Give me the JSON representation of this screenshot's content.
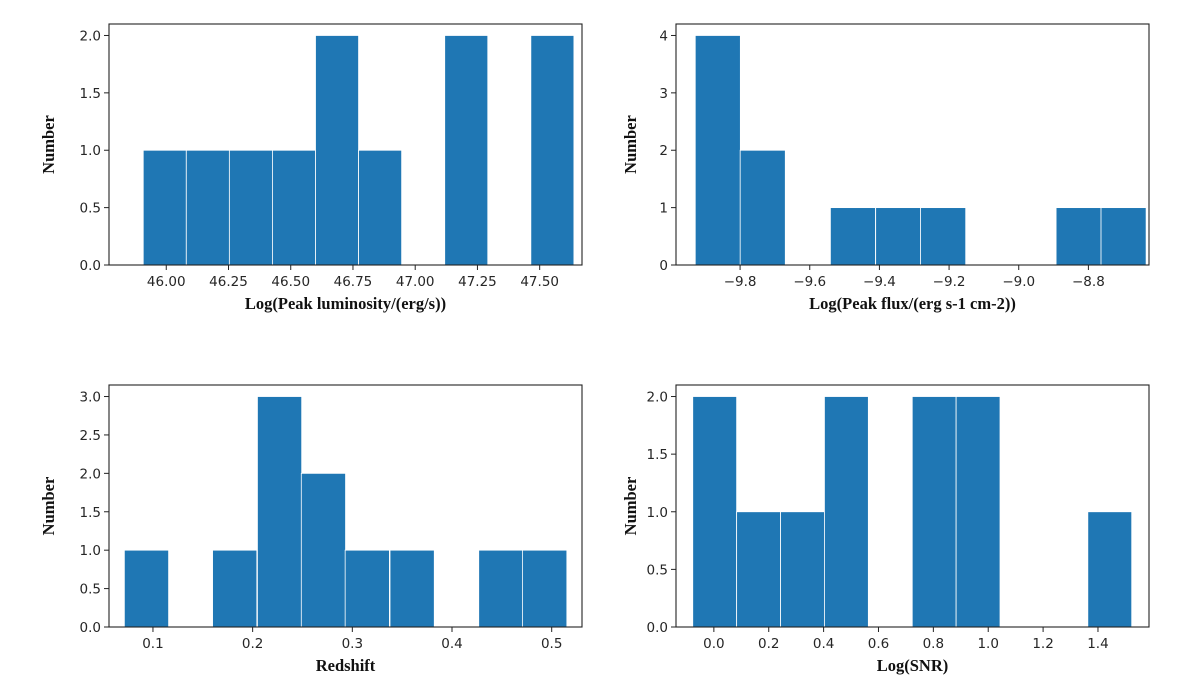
{
  "figure": {
    "bar_color": "#1f77b4"
  },
  "chart_data": [
    {
      "id": "luminosity",
      "type": "bar",
      "title": "",
      "xlabel": "Log(Peak luminosity/(erg/s))",
      "ylabel": "Number",
      "x": [
        45.994,
        46.167,
        46.34,
        46.513,
        46.686,
        46.859,
        47.032,
        47.205,
        47.378,
        47.551
      ],
      "values": [
        1,
        1,
        1,
        1,
        2,
        1,
        0,
        2,
        0,
        2
      ],
      "bin_width": 0.173,
      "xlim": [
        45.77,
        47.67
      ],
      "ylim": [
        0,
        2.1
      ],
      "xticks": [
        46.0,
        46.25,
        46.5,
        46.75,
        47.0,
        47.25,
        47.5
      ],
      "xtick_labels": [
        "46.00",
        "46.25",
        "46.50",
        "46.75",
        "47.00",
        "47.25",
        "47.50"
      ],
      "yticks": [
        0,
        0.5,
        1.0,
        1.5,
        2.0
      ],
      "ytick_labels": [
        "0.0",
        "0.5",
        "1.0",
        "1.5",
        "2.0"
      ],
      "grid": false
    },
    {
      "id": "flux",
      "type": "bar",
      "title": "",
      "xlabel": "Log(Peak flux/(erg s-1 cm-2))",
      "ylabel": "Number",
      "x": [
        -9.864,
        -9.735,
        -9.605,
        -9.476,
        -9.346,
        -9.217,
        -9.087,
        -8.958,
        -8.828,
        -8.699
      ],
      "values": [
        4,
        2,
        0,
        1,
        1,
        1,
        0,
        0,
        1,
        1
      ],
      "bin_width": 0.1295,
      "xlim": [
        -9.984,
        -8.626
      ],
      "ylim": [
        0,
        4.2
      ],
      "xticks": [
        -9.8,
        -9.6,
        -9.4,
        -9.2,
        -9.0,
        -8.8
      ],
      "xtick_labels": [
        "−9.8",
        "−9.6",
        "−9.4",
        "−9.2",
        "−9.0",
        "−8.8"
      ],
      "yticks": [
        0,
        1,
        2,
        3,
        4
      ],
      "ytick_labels": [
        "0",
        "1",
        "2",
        "3",
        "4"
      ],
      "grid": false
    },
    {
      "id": "redshift",
      "type": "bar",
      "title": "",
      "xlabel": "Redshift",
      "ylabel": "Number",
      "x": [
        0.0935,
        0.138,
        0.182,
        0.227,
        0.271,
        0.315,
        0.36,
        0.404,
        0.449,
        0.493
      ],
      "values": [
        1,
        0,
        1,
        3,
        2,
        1,
        1,
        0,
        1,
        1
      ],
      "bin_width": 0.0444,
      "xlim": [
        0.0559,
        0.5304
      ],
      "ylim": [
        0,
        3.15
      ],
      "xticks": [
        0.1,
        0.2,
        0.3,
        0.4,
        0.5
      ],
      "xtick_labels": [
        "0.1",
        "0.2",
        "0.3",
        "0.4",
        "0.5"
      ],
      "yticks": [
        0,
        0.5,
        1.0,
        1.5,
        2.0,
        2.5,
        3.0
      ],
      "ytick_labels": [
        "0.0",
        "0.5",
        "1.0",
        "1.5",
        "2.0",
        "2.5",
        "3.0"
      ],
      "grid": false
    },
    {
      "id": "snr",
      "type": "bar",
      "title": "",
      "xlabel": "Log(SNR)",
      "ylabel": "Number",
      "x": [
        0.003,
        0.163,
        0.323,
        0.483,
        0.643,
        0.803,
        0.963,
        1.123,
        1.283,
        1.443
      ],
      "values": [
        2,
        1,
        1,
        2,
        0,
        2,
        2,
        0,
        0,
        1
      ],
      "bin_width": 0.16,
      "xlim": [
        -0.138,
        1.586
      ],
      "ylim": [
        0,
        2.1
      ],
      "xticks": [
        0.0,
        0.2,
        0.4,
        0.6,
        0.8,
        1.0,
        1.2,
        1.4
      ],
      "xtick_labels": [
        "0.0",
        "0.2",
        "0.4",
        "0.6",
        "0.8",
        "1.0",
        "1.2",
        "1.4"
      ],
      "yticks": [
        0,
        0.5,
        1.0,
        1.5,
        2.0
      ],
      "ytick_labels": [
        "0.0",
        "0.5",
        "1.0",
        "1.5",
        "2.0"
      ],
      "grid": false
    }
  ]
}
